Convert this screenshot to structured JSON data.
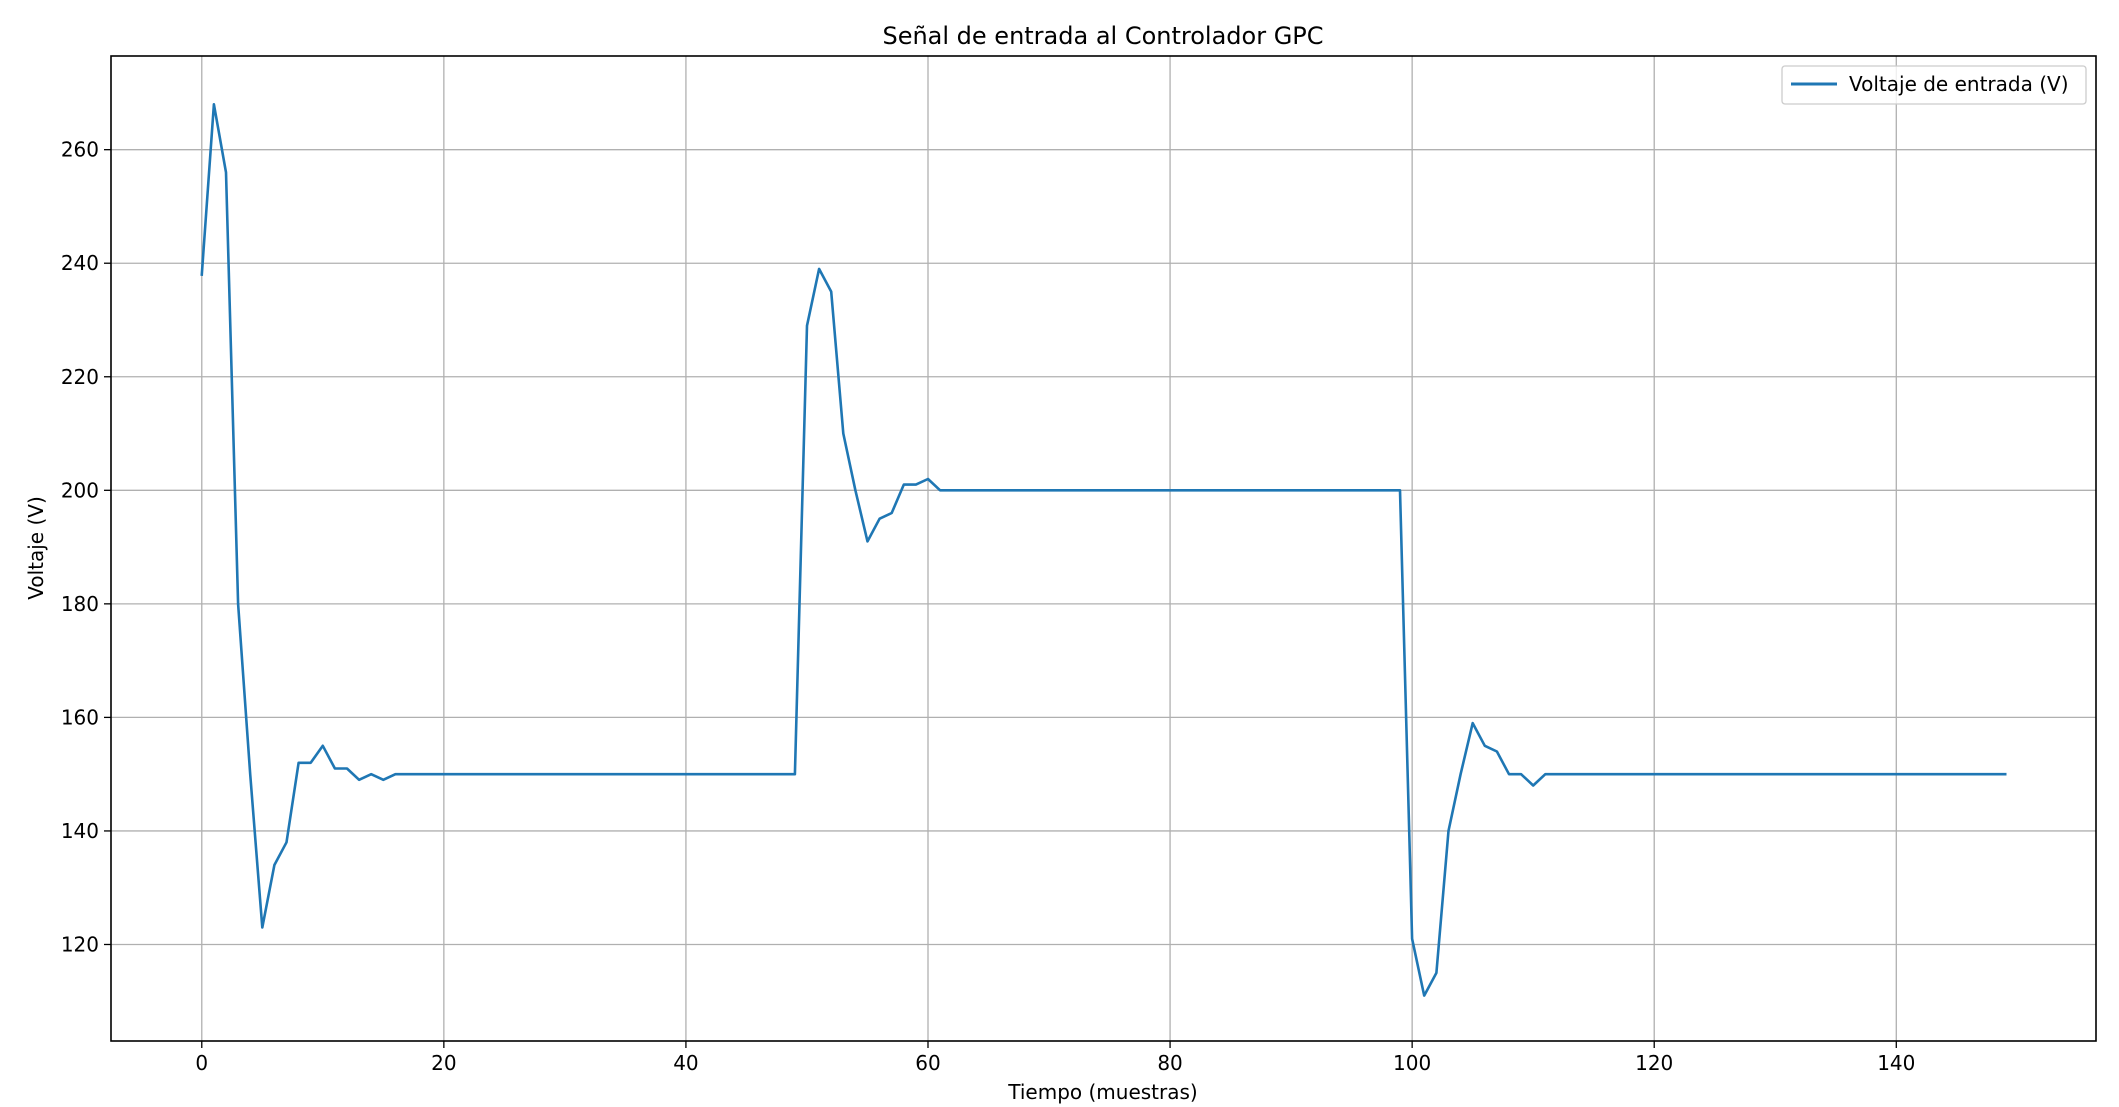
{
  "chart_data": {
    "type": "line",
    "title": "Señal de entrada al Controlador GPC",
    "xlabel": "Tiempo (muestras)",
    "ylabel": "Voltaje (V)",
    "xlim": [
      -7.5,
      156.5
    ],
    "ylim": [
      103,
      276.5
    ],
    "xticks": [
      0,
      20,
      40,
      60,
      80,
      100,
      120,
      140
    ],
    "yticks": [
      120,
      140,
      160,
      180,
      200,
      220,
      240,
      260
    ],
    "grid": true,
    "legend": {
      "position": "top-right"
    },
    "series": [
      {
        "name": "Voltaje de entrada (V)",
        "color": "#1f77b4",
        "x": [
          0,
          1,
          2,
          3,
          4,
          5,
          6,
          7,
          8,
          9,
          10,
          11,
          12,
          13,
          14,
          15,
          16,
          17,
          18,
          19,
          20,
          21,
          22,
          23,
          24,
          25,
          26,
          27,
          28,
          29,
          30,
          31,
          32,
          33,
          34,
          35,
          36,
          37,
          38,
          39,
          40,
          41,
          42,
          43,
          44,
          45,
          46,
          47,
          48,
          49,
          50,
          51,
          52,
          53,
          54,
          55,
          56,
          57,
          58,
          59,
          60,
          61,
          62,
          63,
          64,
          65,
          66,
          67,
          68,
          69,
          70,
          71,
          72,
          73,
          74,
          75,
          76,
          77,
          78,
          79,
          80,
          81,
          82,
          83,
          84,
          85,
          86,
          87,
          88,
          89,
          90,
          91,
          92,
          93,
          94,
          95,
          96,
          97,
          98,
          99,
          100,
          101,
          102,
          103,
          104,
          105,
          106,
          107,
          108,
          109,
          110,
          111,
          112,
          113,
          114,
          115,
          116,
          117,
          118,
          119,
          120,
          121,
          122,
          123,
          124,
          125,
          126,
          127,
          128,
          129,
          130,
          131,
          132,
          133,
          134,
          135,
          136,
          137,
          138,
          139,
          140,
          141,
          142,
          143,
          144,
          145,
          146,
          147,
          148,
          149
        ],
        "y": [
          238,
          268,
          256,
          180,
          150,
          123,
          134,
          138,
          152,
          152,
          155,
          151,
          151,
          149,
          150,
          149,
          150,
          150,
          150,
          150,
          150,
          150,
          150,
          150,
          150,
          150,
          150,
          150,
          150,
          150,
          150,
          150,
          150,
          150,
          150,
          150,
          150,
          150,
          150,
          150,
          150,
          150,
          150,
          150,
          150,
          150,
          150,
          150,
          150,
          150,
          229,
          239,
          235,
          210,
          200,
          191,
          195,
          196,
          201,
          201,
          202,
          200,
          200,
          200,
          200,
          200,
          200,
          200,
          200,
          200,
          200,
          200,
          200,
          200,
          200,
          200,
          200,
          200,
          200,
          200,
          200,
          200,
          200,
          200,
          200,
          200,
          200,
          200,
          200,
          200,
          200,
          200,
          200,
          200,
          200,
          200,
          200,
          200,
          200,
          200,
          121,
          111,
          115,
          140,
          150,
          159,
          155,
          154,
          150,
          150,
          148,
          150,
          150,
          150,
          150,
          150,
          150,
          150,
          150,
          150,
          150,
          150,
          150,
          150,
          150,
          150,
          150,
          150,
          150,
          150,
          150,
          150,
          150,
          150,
          150,
          150,
          150,
          150,
          150,
          150,
          150,
          150,
          150,
          150,
          150,
          150,
          150,
          150,
          150,
          150
        ]
      }
    ]
  }
}
